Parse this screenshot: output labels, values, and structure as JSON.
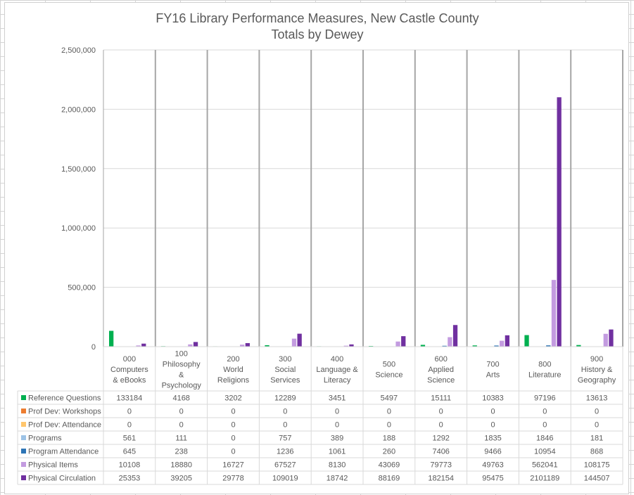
{
  "chart_data": {
    "type": "bar",
    "title": "FY16 Library Performance Measures, New Castle County",
    "subtitle": "Totals by Dewey",
    "categories": [
      [
        "000",
        "Computers",
        "& eBooks"
      ],
      [
        "100",
        "Philosophy",
        "&",
        "Psychology"
      ],
      [
        "200",
        "World",
        "Religions"
      ],
      [
        "300",
        "Social",
        "Services"
      ],
      [
        "400",
        "Language &",
        "Literacy"
      ],
      [
        "500",
        "Science"
      ],
      [
        "600",
        "Applied",
        "Science"
      ],
      [
        "700",
        "Arts"
      ],
      [
        "800",
        "Literature"
      ],
      [
        "900",
        "History &",
        "Geography"
      ]
    ],
    "ylim": [
      0,
      2500000
    ],
    "yticks": [
      0,
      500000,
      1000000,
      1500000,
      2000000,
      2500000
    ],
    "ytick_labels": [
      "0",
      "500,000",
      "1,000,000",
      "1,500,000",
      "2,000,000",
      "2,500,000"
    ],
    "grid": true,
    "legend": "data-table",
    "series": [
      {
        "name": "Reference Questions",
        "color": "#00b050",
        "values": [
          133184,
          4168,
          3202,
          12289,
          3451,
          5497,
          15111,
          10383,
          97196,
          13613
        ]
      },
      {
        "name": "Prof Dev: Workshops",
        "color": "#ed7d31",
        "values": [
          0,
          0,
          0,
          0,
          0,
          0,
          0,
          0,
          0,
          0
        ]
      },
      {
        "name": "Prof Dev: Attendance",
        "color": "#ffc66d",
        "values": [
          0,
          0,
          0,
          0,
          0,
          0,
          0,
          0,
          0,
          0
        ]
      },
      {
        "name": "Programs",
        "color": "#9dc3e6",
        "values": [
          561,
          111,
          0,
          757,
          389,
          188,
          1292,
          1835,
          1846,
          181
        ]
      },
      {
        "name": "Program Attendance",
        "color": "#2e75b6",
        "values": [
          645,
          238,
          0,
          1236,
          1061,
          260,
          7406,
          9466,
          10954,
          868
        ]
      },
      {
        "name": "Physical Items",
        "color": "#c39be0",
        "values": [
          10108,
          18880,
          16727,
          67527,
          8130,
          43069,
          79773,
          49763,
          562041,
          108175
        ]
      },
      {
        "name": "Physical Circulation",
        "color": "#7030a0",
        "values": [
          25353,
          39205,
          29778,
          109019,
          18742,
          88169,
          182154,
          95475,
          2101189,
          144507
        ]
      }
    ]
  }
}
